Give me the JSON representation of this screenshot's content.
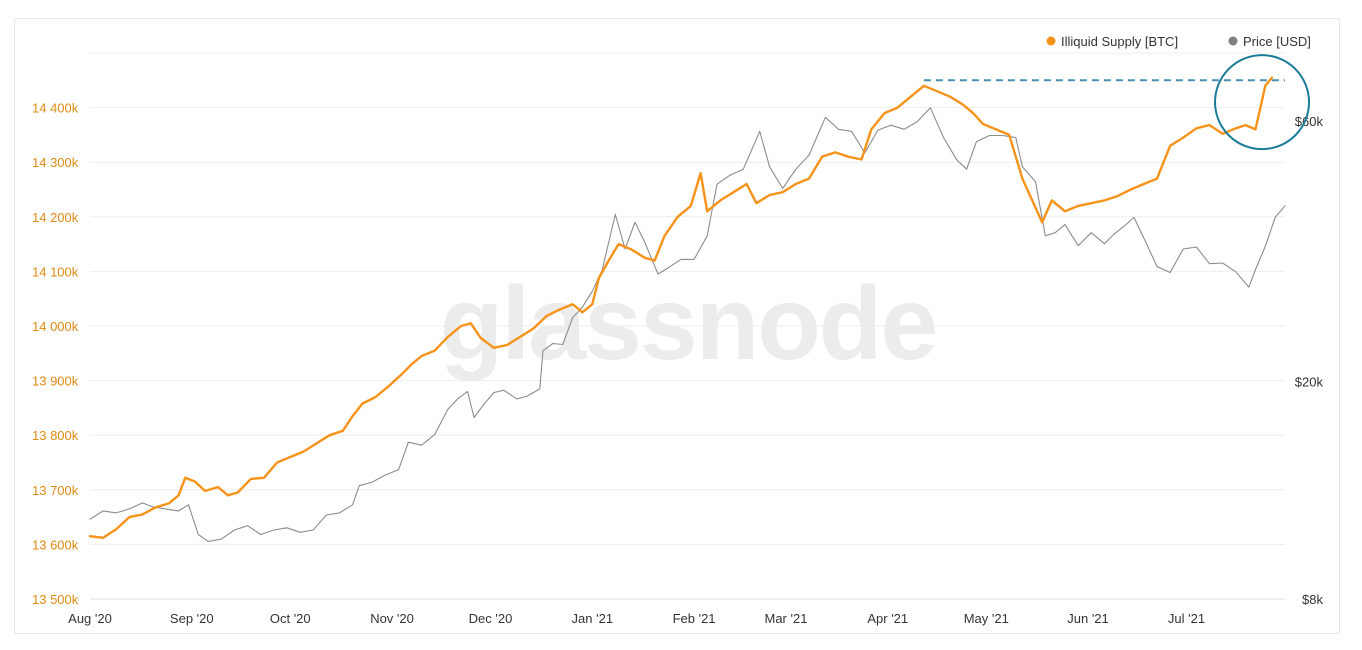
{
  "colors": {
    "illiquid": "#f7931a",
    "price": "#8c8c8c",
    "left_axis": "#e08a14",
    "grid": "#eeeeee",
    "dashed": "#4a8fb0",
    "circle": "#1a7c99",
    "watermark": "#ececec"
  },
  "watermark": "glassnode",
  "legend": [
    {
      "name": "Illiquid Supply [BTC]",
      "color": "#f7931a"
    },
    {
      "name": "Price [USD]",
      "color": "#808080"
    }
  ],
  "chart_data": {
    "type": "line",
    "legend_position": "top-right",
    "grid": true,
    "y_left": {
      "ticks": [
        13500000,
        13600000,
        13700000,
        13800000,
        13900000,
        14000000,
        14100000,
        14200000,
        14300000,
        14400000
      ],
      "tick_labels": [
        "13 500k",
        "13 600k",
        "13 700k",
        "13 800k",
        "13 900k",
        "14 000k",
        "14 100k",
        "14 200k",
        "14 300k",
        "14 400k"
      ],
      "range": [
        13500000,
        14500000
      ]
    },
    "y_right": {
      "scale": "log",
      "ticks": [
        8000,
        20000,
        60000
      ],
      "tick_labels": [
        "$8k",
        "$20k",
        "$60k"
      ],
      "range": [
        8000,
        80000
      ]
    },
    "x": {
      "range": [
        "2020-08-01",
        "2021-07-31"
      ],
      "ticks": [
        "2020-08-01",
        "2020-09-01",
        "2020-10-01",
        "2020-11-01",
        "2020-12-01",
        "2021-01-01",
        "2021-02-01",
        "2021-03-01",
        "2021-04-01",
        "2021-05-01",
        "2021-06-01",
        "2021-07-01"
      ],
      "tick_labels": [
        "Aug '20",
        "Sep '20",
        "Oct '20",
        "Nov '20",
        "Dec '20",
        "Jan '21",
        "Feb '21",
        "Mar '21",
        "Apr '21",
        "May '21",
        "Jun '21",
        "Jul '21"
      ]
    },
    "series": [
      {
        "name": "Illiquid Supply [BTC]",
        "axis": "left",
        "points": [
          [
            "2020-08-01",
            13615000
          ],
          [
            "2020-08-05",
            13612000
          ],
          [
            "2020-08-09",
            13628000
          ],
          [
            "2020-08-13",
            13650000
          ],
          [
            "2020-08-17",
            13655000
          ],
          [
            "2020-08-21",
            13668000
          ],
          [
            "2020-08-25",
            13675000
          ],
          [
            "2020-08-28",
            13690000
          ],
          [
            "2020-08-30",
            13722000
          ],
          [
            "2020-09-02",
            13715000
          ],
          [
            "2020-09-05",
            13698000
          ],
          [
            "2020-09-09",
            13705000
          ],
          [
            "2020-09-12",
            13690000
          ],
          [
            "2020-09-15",
            13695000
          ],
          [
            "2020-09-19",
            13720000
          ],
          [
            "2020-09-23",
            13722000
          ],
          [
            "2020-09-27",
            13750000
          ],
          [
            "2020-10-01",
            13760000
          ],
          [
            "2020-10-05",
            13770000
          ],
          [
            "2020-10-09",
            13785000
          ],
          [
            "2020-10-13",
            13800000
          ],
          [
            "2020-10-17",
            13808000
          ],
          [
            "2020-10-20",
            13835000
          ],
          [
            "2020-10-23",
            13858000
          ],
          [
            "2020-10-27",
            13870000
          ],
          [
            "2020-10-31",
            13890000
          ],
          [
            "2020-11-04",
            13912000
          ],
          [
            "2020-11-07",
            13930000
          ],
          [
            "2020-11-10",
            13945000
          ],
          [
            "2020-11-14",
            13955000
          ],
          [
            "2020-11-18",
            13980000
          ],
          [
            "2020-11-22",
            14000000
          ],
          [
            "2020-11-25",
            14005000
          ],
          [
            "2020-11-28",
            13978000
          ],
          [
            "2020-12-02",
            13960000
          ],
          [
            "2020-12-06",
            13965000
          ],
          [
            "2020-12-10",
            13980000
          ],
          [
            "2020-12-14",
            13995000
          ],
          [
            "2020-12-18",
            14018000
          ],
          [
            "2020-12-22",
            14030000
          ],
          [
            "2020-12-26",
            14040000
          ],
          [
            "2020-12-29",
            14025000
          ],
          [
            "2021-01-01",
            14040000
          ],
          [
            "2021-01-03",
            14088000
          ],
          [
            "2021-01-06",
            14120000
          ],
          [
            "2021-01-09",
            14150000
          ],
          [
            "2021-01-13",
            14140000
          ],
          [
            "2021-01-17",
            14125000
          ],
          [
            "2021-01-20",
            14120000
          ],
          [
            "2021-01-23",
            14165000
          ],
          [
            "2021-01-27",
            14200000
          ],
          [
            "2021-01-31",
            14220000
          ],
          [
            "2021-02-03",
            14280000
          ],
          [
            "2021-02-05",
            14210000
          ],
          [
            "2021-02-09",
            14230000
          ],
          [
            "2021-02-13",
            14245000
          ],
          [
            "2021-02-17",
            14260000
          ],
          [
            "2021-02-20",
            14225000
          ],
          [
            "2021-02-24",
            14240000
          ],
          [
            "2021-02-28",
            14245000
          ],
          [
            "2021-03-04",
            14260000
          ],
          [
            "2021-03-08",
            14270000
          ],
          [
            "2021-03-12",
            14310000
          ],
          [
            "2021-03-16",
            14318000
          ],
          [
            "2021-03-20",
            14310000
          ],
          [
            "2021-03-24",
            14305000
          ],
          [
            "2021-03-27",
            14360000
          ],
          [
            "2021-03-31",
            14390000
          ],
          [
            "2021-04-04",
            14400000
          ],
          [
            "2021-04-08",
            14420000
          ],
          [
            "2021-04-12",
            14440000
          ],
          [
            "2021-04-16",
            14430000
          ],
          [
            "2021-04-20",
            14420000
          ],
          [
            "2021-04-24",
            14405000
          ],
          [
            "2021-04-27",
            14390000
          ],
          [
            "2021-04-30",
            14370000
          ],
          [
            "2021-05-04",
            14360000
          ],
          [
            "2021-05-08",
            14350000
          ],
          [
            "2021-05-12",
            14270000
          ],
          [
            "2021-05-15",
            14230000
          ],
          [
            "2021-05-18",
            14190000
          ],
          [
            "2021-05-21",
            14230000
          ],
          [
            "2021-05-25",
            14210000
          ],
          [
            "2021-05-29",
            14220000
          ],
          [
            "2021-06-02",
            14225000
          ],
          [
            "2021-06-06",
            14230000
          ],
          [
            "2021-06-10",
            14238000
          ],
          [
            "2021-06-14",
            14250000
          ],
          [
            "2021-06-18",
            14260000
          ],
          [
            "2021-06-22",
            14270000
          ],
          [
            "2021-06-26",
            14330000
          ],
          [
            "2021-06-30",
            14345000
          ],
          [
            "2021-07-04",
            14362000
          ],
          [
            "2021-07-08",
            14368000
          ],
          [
            "2021-07-12",
            14352000
          ],
          [
            "2021-07-16",
            14362000
          ],
          [
            "2021-07-19",
            14368000
          ],
          [
            "2021-07-22",
            14360000
          ],
          [
            "2021-07-25",
            14440000
          ],
          [
            "2021-07-27",
            14455000
          ]
        ]
      },
      {
        "name": "Price [USD]",
        "axis": "right",
        "points": [
          [
            "2020-08-01",
            11200
          ],
          [
            "2020-08-05",
            11600
          ],
          [
            "2020-08-09",
            11500
          ],
          [
            "2020-08-13",
            11700
          ],
          [
            "2020-08-17",
            12000
          ],
          [
            "2020-08-20",
            11800
          ],
          [
            "2020-08-24",
            11700
          ],
          [
            "2020-08-28",
            11600
          ],
          [
            "2020-08-31",
            11900
          ],
          [
            "2020-09-03",
            10500
          ],
          [
            "2020-09-06",
            10200
          ],
          [
            "2020-09-10",
            10300
          ],
          [
            "2020-09-14",
            10700
          ],
          [
            "2020-09-18",
            10900
          ],
          [
            "2020-09-22",
            10500
          ],
          [
            "2020-09-26",
            10700
          ],
          [
            "2020-09-30",
            10800
          ],
          [
            "2020-10-04",
            10600
          ],
          [
            "2020-10-08",
            10700
          ],
          [
            "2020-10-12",
            11400
          ],
          [
            "2020-10-16",
            11500
          ],
          [
            "2020-10-20",
            11900
          ],
          [
            "2020-10-22",
            12900
          ],
          [
            "2020-10-26",
            13100
          ],
          [
            "2020-10-30",
            13500
          ],
          [
            "2020-11-03",
            13800
          ],
          [
            "2020-11-06",
            15500
          ],
          [
            "2020-11-10",
            15300
          ],
          [
            "2020-11-14",
            16000
          ],
          [
            "2020-11-18",
            17800
          ],
          [
            "2020-11-21",
            18600
          ],
          [
            "2020-11-24",
            19200
          ],
          [
            "2020-11-26",
            17200
          ],
          [
            "2020-11-29",
            18200
          ],
          [
            "2020-12-02",
            19100
          ],
          [
            "2020-12-05",
            19300
          ],
          [
            "2020-12-09",
            18600
          ],
          [
            "2020-12-12",
            18800
          ],
          [
            "2020-12-16",
            19400
          ],
          [
            "2020-12-17",
            22800
          ],
          [
            "2020-12-20",
            23500
          ],
          [
            "2020-12-23",
            23400
          ],
          [
            "2020-12-26",
            26200
          ],
          [
            "2020-12-29",
            27400
          ],
          [
            "2021-01-01",
            29300
          ],
          [
            "2021-01-04",
            32000
          ],
          [
            "2021-01-08",
            40500
          ],
          [
            "2021-01-11",
            35000
          ],
          [
            "2021-01-14",
            39200
          ],
          [
            "2021-01-17",
            36000
          ],
          [
            "2021-01-21",
            31500
          ],
          [
            "2021-01-24",
            32300
          ],
          [
            "2021-01-28",
            33500
          ],
          [
            "2021-02-01",
            33500
          ],
          [
            "2021-02-05",
            37000
          ],
          [
            "2021-02-08",
            46000
          ],
          [
            "2021-02-12",
            47800
          ],
          [
            "2021-02-16",
            49000
          ],
          [
            "2021-02-21",
            57500
          ],
          [
            "2021-02-24",
            49500
          ],
          [
            "2021-02-28",
            45200
          ],
          [
            "2021-03-04",
            49000
          ],
          [
            "2021-03-08",
            52000
          ],
          [
            "2021-03-13",
            61000
          ],
          [
            "2021-03-17",
            58000
          ],
          [
            "2021-03-21",
            57500
          ],
          [
            "2021-03-25",
            52500
          ],
          [
            "2021-03-29",
            57800
          ],
          [
            "2021-04-02",
            59000
          ],
          [
            "2021-04-06",
            58000
          ],
          [
            "2021-04-10",
            59900
          ],
          [
            "2021-04-14",
            63500
          ],
          [
            "2021-04-18",
            56000
          ],
          [
            "2021-04-22",
            51000
          ],
          [
            "2021-04-25",
            49000
          ],
          [
            "2021-04-28",
            55000
          ],
          [
            "2021-05-02",
            56500
          ],
          [
            "2021-05-06",
            56500
          ],
          [
            "2021-05-10",
            56000
          ],
          [
            "2021-05-12",
            49500
          ],
          [
            "2021-05-16",
            46500
          ],
          [
            "2021-05-19",
            37000
          ],
          [
            "2021-05-22",
            37500
          ],
          [
            "2021-05-25",
            38800
          ],
          [
            "2021-05-29",
            35500
          ],
          [
            "2021-06-02",
            37500
          ],
          [
            "2021-06-06",
            35800
          ],
          [
            "2021-06-09",
            37300
          ],
          [
            "2021-06-13",
            39000
          ],
          [
            "2021-06-15",
            40000
          ],
          [
            "2021-06-19",
            35600
          ],
          [
            "2021-06-22",
            32500
          ],
          [
            "2021-06-26",
            31700
          ],
          [
            "2021-06-30",
            35000
          ],
          [
            "2021-07-04",
            35300
          ],
          [
            "2021-07-08",
            32900
          ],
          [
            "2021-07-12",
            33000
          ],
          [
            "2021-07-16",
            31800
          ],
          [
            "2021-07-20",
            29800
          ],
          [
            "2021-07-22",
            32100
          ],
          [
            "2021-07-25",
            35400
          ],
          [
            "2021-07-28",
            40000
          ],
          [
            "2021-07-31",
            42000
          ]
        ]
      }
    ],
    "annotations": [
      {
        "type": "dashed-horizontal-line",
        "value": 14450000,
        "axis": "left",
        "from": "2021-04-12",
        "to": "2021-07-31"
      },
      {
        "type": "circle",
        "center": [
          "2021-07-24",
          14410000
        ],
        "meaning": "highlights latest illiquid supply high"
      }
    ]
  }
}
